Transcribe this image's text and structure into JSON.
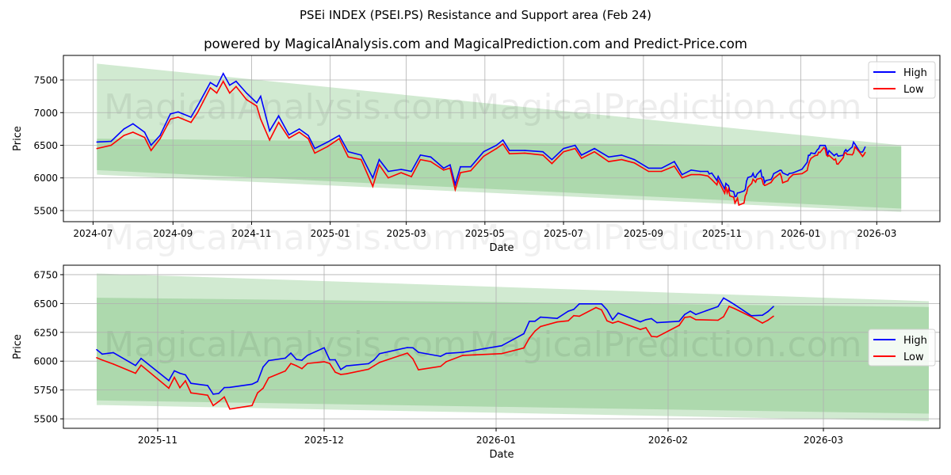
{
  "title": "PSEi INDEX (PSEI.PS) Resistance and Support area (Feb 24)",
  "subtitle": "powered by MagicalAnalysis.com and MagicalPrediction.com and Predict-Price.com",
  "watermarks": [
    "MagicalAnalysis.com",
    "MagicalPrediction.com"
  ],
  "colors": {
    "high": "#0000ff",
    "low": "#ff0000",
    "band": "#2ca02c"
  },
  "chart_data": [
    {
      "type": "line",
      "name": "full-history",
      "xlabel": "Date",
      "ylabel": "Price",
      "xlim": [
        "2024-06-08",
        "2026-04-19"
      ],
      "ylim": [
        5330,
        7876
      ],
      "xticks": [
        "2024-07",
        "2024-09",
        "2024-11",
        "2025-01",
        "2025-03",
        "2025-05",
        "2025-07",
        "2025-09",
        "2025-11",
        "2026-01",
        "2026-03"
      ],
      "yticks": [
        5500,
        6000,
        6500,
        7000,
        7500
      ],
      "legend": {
        "position": "top-right",
        "entries": [
          "High",
          "Low"
        ]
      },
      "grid": true,
      "bands": {
        "start": "2024-07-04",
        "end": "2026-03-20",
        "outer": {
          "top": [
            7750,
            6500
          ],
          "bottom": [
            6050,
            5480
          ]
        },
        "inner": {
          "top": [
            6600,
            6480
          ],
          "bottom": [
            6120,
            5530
          ]
        }
      },
      "from": "2024-01-01"
    },
    {
      "type": "line",
      "name": "recent",
      "xlabel": "Date",
      "ylabel": "Price",
      "xlim": [
        "2025-10-15",
        "2026-03-22"
      ],
      "ylim": [
        5418,
        6832
      ],
      "xticks": [
        "2025-11",
        "2025-12",
        "2026-01",
        "2026-02",
        "2026-03"
      ],
      "yticks": [
        5500,
        5750,
        6000,
        6250,
        6500,
        6750
      ],
      "legend": {
        "position": "center-right",
        "entries": [
          "High",
          "Low"
        ]
      },
      "grid": true,
      "bands": {
        "start": "2025-10-21",
        "end": "2026-03-20",
        "outer": {
          "top": [
            6760,
            6520
          ],
          "bottom": [
            5620,
            5480
          ]
        },
        "inner": {
          "top": [
            6550,
            6470
          ],
          "bottom": [
            5660,
            5545
          ]
        }
      },
      "from": "2025-10-20"
    }
  ],
  "series": [
    [
      "2024-07-04",
      6550,
      6450
    ],
    [
      "2024-07-15",
      6560,
      6500
    ],
    [
      "2024-07-25",
      6750,
      6650
    ],
    [
      "2024-08-01",
      6830,
      6700
    ],
    [
      "2024-08-10",
      6700,
      6620
    ],
    [
      "2024-08-15",
      6500,
      6420
    ],
    [
      "2024-08-22",
      6650,
      6600
    ],
    [
      "2024-08-30",
      6980,
      6900
    ],
    [
      "2024-09-05",
      7010,
      6930
    ],
    [
      "2024-09-15",
      6930,
      6850
    ],
    [
      "2024-09-20",
      7100,
      7000
    ],
    [
      "2024-09-30",
      7460,
      7380
    ],
    [
      "2024-10-05",
      7400,
      7300
    ],
    [
      "2024-10-10",
      7600,
      7480
    ],
    [
      "2024-10-15",
      7420,
      7300
    ],
    [
      "2024-10-20",
      7480,
      7400
    ],
    [
      "2024-10-28",
      7300,
      7200
    ],
    [
      "2024-11-05",
      7150,
      7100
    ],
    [
      "2024-11-08",
      7250,
      6900
    ],
    [
      "2024-11-15",
      6720,
      6580
    ],
    [
      "2024-11-22",
      6950,
      6850
    ],
    [
      "2024-11-30",
      6660,
      6610
    ],
    [
      "2024-12-08",
      6750,
      6700
    ],
    [
      "2024-12-15",
      6650,
      6600
    ],
    [
      "2024-12-20",
      6450,
      6380
    ],
    [
      "2024-12-30",
      6550,
      6480
    ],
    [
      "2025-01-08",
      6650,
      6600
    ],
    [
      "2025-01-15",
      6400,
      6320
    ],
    [
      "2025-01-25",
      6350,
      6280
    ],
    [
      "2025-02-03",
      6000,
      5870
    ],
    [
      "2025-02-08",
      6280,
      6200
    ],
    [
      "2025-02-15",
      6100,
      6000
    ],
    [
      "2025-02-25",
      6130,
      6080
    ],
    [
      "2025-03-05",
      6100,
      6020
    ],
    [
      "2025-03-12",
      6350,
      6280
    ],
    [
      "2025-03-20",
      6320,
      6250
    ],
    [
      "2025-03-30",
      6150,
      6120
    ],
    [
      "2025-04-04",
      6200,
      6150
    ],
    [
      "2025-04-08",
      5900,
      5820
    ],
    [
      "2025-04-12",
      6170,
      6080
    ],
    [
      "2025-04-20",
      6170,
      6110
    ],
    [
      "2025-04-30",
      6400,
      6330
    ],
    [
      "2025-05-10",
      6500,
      6450
    ],
    [
      "2025-05-15",
      6580,
      6520
    ],
    [
      "2025-05-20",
      6420,
      6370
    ],
    [
      "2025-06-01",
      6420,
      6380
    ],
    [
      "2025-06-15",
      6400,
      6350
    ],
    [
      "2025-06-22",
      6280,
      6220
    ],
    [
      "2025-07-01",
      6450,
      6400
    ],
    [
      "2025-07-10",
      6500,
      6450
    ],
    [
      "2025-07-15",
      6350,
      6300
    ],
    [
      "2025-07-25",
      6450,
      6400
    ],
    [
      "2025-08-05",
      6320,
      6250
    ],
    [
      "2025-08-15",
      6350,
      6280
    ],
    [
      "2025-08-25",
      6280,
      6230
    ],
    [
      "2025-09-05",
      6150,
      6100
    ],
    [
      "2025-09-15",
      6150,
      6100
    ],
    [
      "2025-09-25",
      6250,
      6180
    ],
    [
      "2025-10-01",
      6050,
      6000
    ],
    [
      "2025-10-08",
      6120,
      6050
    ],
    [
      "2025-10-15",
      6100,
      6050
    ],
    [
      "2025-10-21",
      6100,
      6030
    ],
    [
      "2025-10-22",
      6061,
      6010
    ],
    [
      "2025-10-24",
      6074,
      5975
    ],
    [
      "2025-10-28",
      5962,
      5895
    ],
    [
      "2025-10-29",
      6024,
      5965
    ],
    [
      "2025-11-03",
      5831,
      5765
    ],
    [
      "2025-11-04",
      5916,
      5860
    ],
    [
      "2025-11-05",
      5895,
      5770
    ],
    [
      "2025-11-06",
      5881,
      5830
    ],
    [
      "2025-11-07",
      5808,
      5725
    ],
    [
      "2025-11-10",
      5789,
      5705
    ],
    [
      "2025-11-11",
      5714,
      5615
    ],
    [
      "2025-11-12",
      5720,
      5650
    ],
    [
      "2025-11-13",
      5771,
      5690
    ],
    [
      "2025-11-14",
      5773,
      5585
    ],
    [
      "2025-11-18",
      5800,
      5615
    ],
    [
      "2025-11-19",
      5824,
      5725
    ],
    [
      "2025-11-20",
      5950,
      5765
    ],
    [
      "2025-11-21",
      6005,
      5855
    ],
    [
      "2025-11-24",
      6026,
      5915
    ],
    [
      "2025-11-25",
      6070,
      5980
    ],
    [
      "2025-11-26",
      6015,
      5960
    ],
    [
      "2025-11-27",
      6008,
      5935
    ],
    [
      "2025-11-28",
      6051,
      5980
    ],
    [
      "2025-12-01",
      6116,
      5995
    ],
    [
      "2025-12-02",
      6012,
      5980
    ],
    [
      "2025-12-03",
      6012,
      5905
    ],
    [
      "2025-12-04",
      5927,
      5885
    ],
    [
      "2025-12-05",
      5959,
      5890
    ],
    [
      "2025-12-09",
      5978,
      5930
    ],
    [
      "2025-12-10",
      6012,
      5960
    ],
    [
      "2025-12-11",
      6065,
      5990
    ],
    [
      "2025-12-16",
      6118,
      6070
    ],
    [
      "2025-12-17",
      6116,
      6020
    ],
    [
      "2025-12-18",
      6077,
      5925
    ],
    [
      "2025-12-22",
      6042,
      5955
    ],
    [
      "2025-12-23",
      6067,
      5995
    ],
    [
      "2025-12-26",
      6077,
      6050
    ],
    [
      "2026-01-02",
      6134,
      6065
    ],
    [
      "2026-01-06",
      6238,
      6115
    ],
    [
      "2026-01-07",
      6346,
      6200
    ],
    [
      "2026-01-08",
      6346,
      6260
    ],
    [
      "2026-01-09",
      6382,
      6300
    ],
    [
      "2026-01-12",
      6371,
      6340
    ],
    [
      "2026-01-14",
      6433,
      6350
    ],
    [
      "2026-01-15",
      6449,
      6395
    ],
    [
      "2026-01-16",
      6497,
      6390
    ],
    [
      "2026-01-19",
      6497,
      6465
    ],
    [
      "2026-01-20",
      6497,
      6445
    ],
    [
      "2026-01-21",
      6444,
      6350
    ],
    [
      "2026-01-22",
      6359,
      6330
    ],
    [
      "2026-01-23",
      6417,
      6345
    ],
    [
      "2026-01-27",
      6341,
      6275
    ],
    [
      "2026-01-28",
      6360,
      6290
    ],
    [
      "2026-01-29",
      6369,
      6215
    ],
    [
      "2026-01-30",
      6334,
      6210
    ],
    [
      "2026-02-03",
      6346,
      6310
    ],
    [
      "2026-02-04",
      6405,
      6380
    ],
    [
      "2026-02-05",
      6433,
      6385
    ],
    [
      "2026-02-06",
      6405,
      6360
    ],
    [
      "2026-02-10",
      6474,
      6355
    ],
    [
      "2026-02-11",
      6548,
      6385
    ],
    [
      "2026-02-12",
      6520,
      6475
    ],
    [
      "2026-02-13",
      6490,
      6455
    ],
    [
      "2026-02-16",
      6394,
      6385
    ],
    [
      "2026-02-18",
      6398,
      6330
    ],
    [
      "2026-02-19",
      6430,
      6355
    ],
    [
      "2026-02-20",
      6474,
      6390
    ]
  ]
}
